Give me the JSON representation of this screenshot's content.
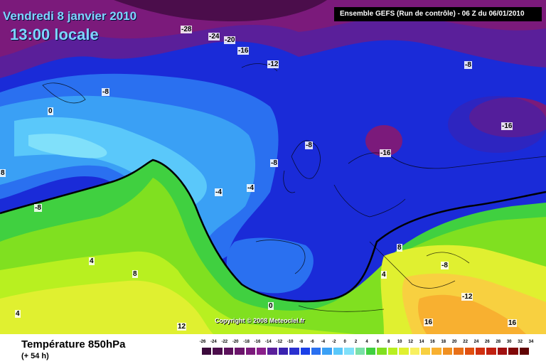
{
  "header": {
    "date": "Vendredi 8 janvier 2010",
    "time": "13:00 locale",
    "run_info": "Ensemble GEFS (Run de contrôle)  -  06 Z du 06/01/2010"
  },
  "copyright": "Copyright © 2008 Meteociel.fr",
  "footer": {
    "variable": "Température 850hPa",
    "lead": "(+ 54 h)"
  },
  "map_labels": [
    "-28",
    "-24",
    "-20",
    "-16",
    "-12",
    "-8",
    "-8",
    "0",
    "8",
    "-8",
    "-8",
    "-8",
    "-4",
    "-4",
    "-16",
    "-16",
    "-8",
    "4",
    "8",
    "4",
    "0",
    "12",
    "4",
    "8",
    "-12",
    "16",
    "16"
  ],
  "legend": {
    "ticks": [
      "-26",
      "-24",
      "-22",
      "-20",
      "-18",
      "-16",
      "-14",
      "-12",
      "-10",
      "-8",
      "-6",
      "-4",
      "-2",
      "0",
      "2",
      "4",
      "6",
      "8",
      "10",
      "12",
      "14",
      "16",
      "18",
      "20",
      "22",
      "24",
      "26",
      "28",
      "30",
      "32",
      "34"
    ],
    "colors": [
      "#3b0a3b",
      "#4b0d4b",
      "#5b115b",
      "#6b156b",
      "#7b1a7b",
      "#8a1f8a",
      "#5a1f9a",
      "#3a22b0",
      "#2a30d0",
      "#1a40e8",
      "#2a70f0",
      "#3aa0f5",
      "#5ac8fa",
      "#80e0fa",
      "#7ae0a8",
      "#40d040",
      "#80e020",
      "#b8f020",
      "#e0f030",
      "#f8f060",
      "#f8d040",
      "#f8b030",
      "#f09020",
      "#e87018",
      "#e05010",
      "#d03010",
      "#c02010",
      "#a01010",
      "#800808",
      "#600404"
    ]
  }
}
